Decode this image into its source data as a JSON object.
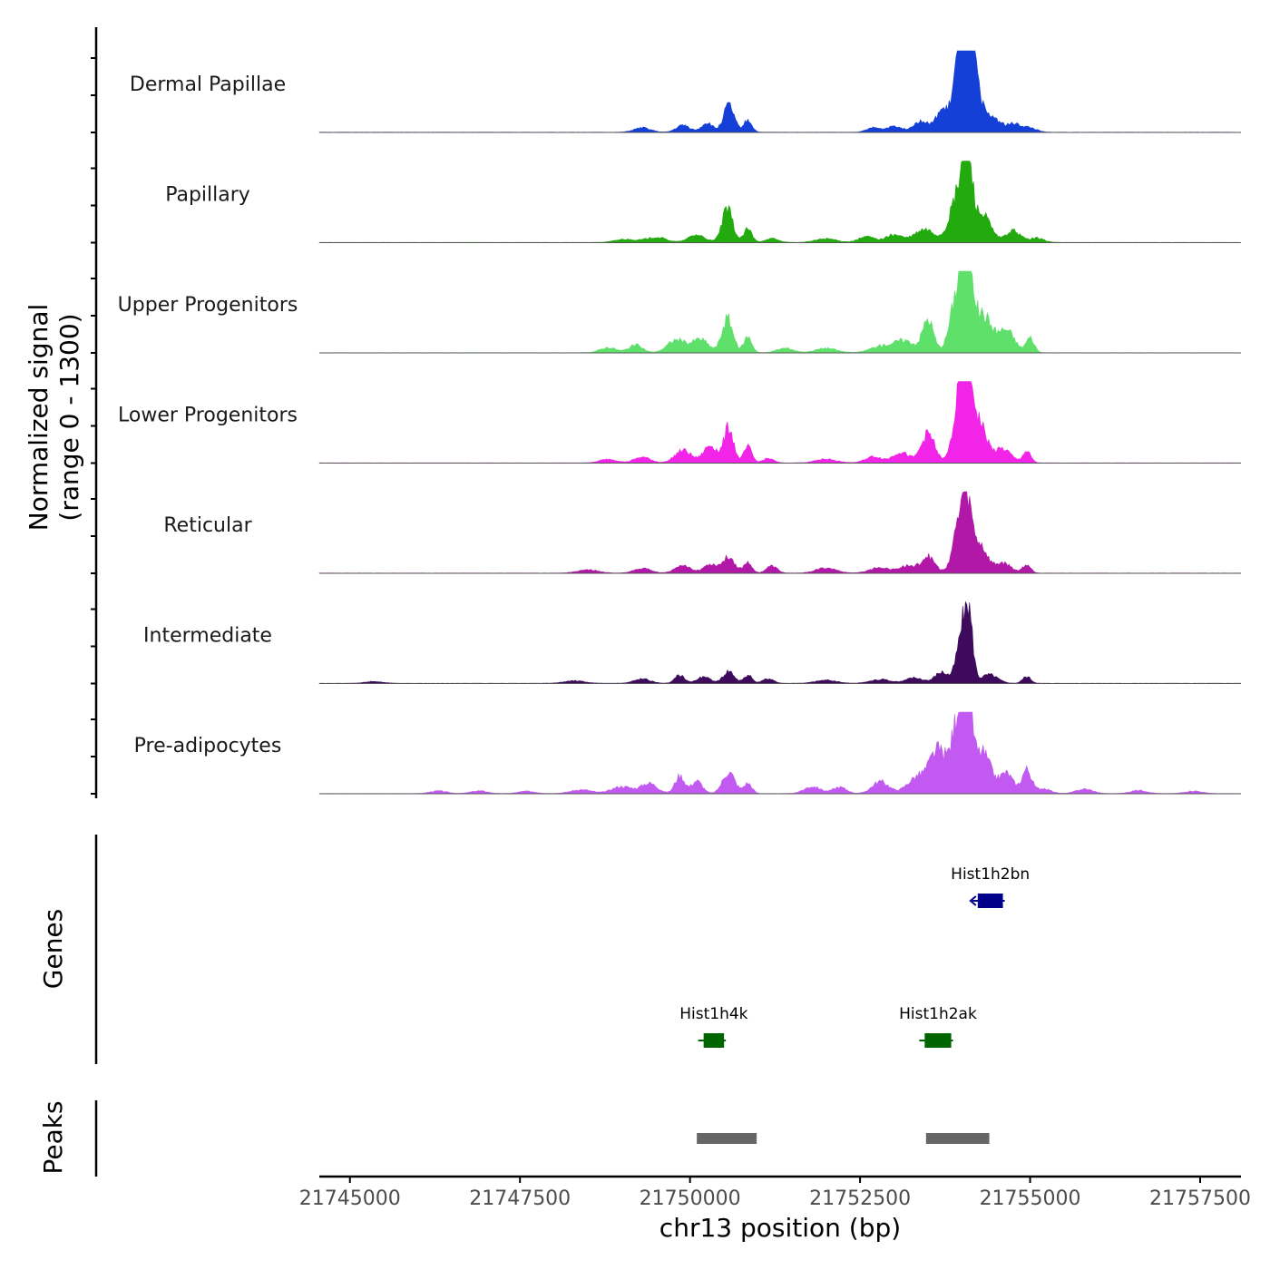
{
  "chart_data": {
    "type": "area",
    "title": "",
    "xlabel": "chr13 position (bp)",
    "ylabel": "Normalized signal\n(range 0 - 1300)",
    "ylabel_lines": [
      "Normalized signal",
      "(range 0 - 1300)"
    ],
    "ylim": [
      0,
      1300
    ],
    "xlim": [
      21744550,
      21758100
    ],
    "x_ticks": [
      21745000,
      21747500,
      21750000,
      21752500,
      21755000,
      21757500
    ],
    "x_tick_labels": [
      "21745000",
      "21747500",
      "21750000",
      "21752500",
      "21755000",
      "21757500"
    ],
    "panels": {
      "genes_title": "Genes",
      "peaks_title": "Peaks"
    },
    "tracks": [
      {
        "name": "Dermal Papillae",
        "color": "#1440d8",
        "peaks": [
          [
            21749300,
            70,
            120
          ],
          [
            21749900,
            110,
            100
          ],
          [
            21750250,
            150,
            80
          ],
          [
            21750570,
            420,
            80
          ],
          [
            21750850,
            190,
            60
          ],
          [
            21752700,
            70,
            100
          ],
          [
            21753000,
            100,
            100
          ],
          [
            21753400,
            180,
            120
          ],
          [
            21753700,
            330,
            80
          ],
          [
            21753950,
            1000,
            90
          ],
          [
            21754070,
            1250,
            80
          ],
          [
            21754200,
            700,
            90
          ],
          [
            21754450,
            230,
            100
          ],
          [
            21754750,
            130,
            120
          ],
          [
            21755000,
            60,
            100
          ]
        ]
      },
      {
        "name": "Papillary",
        "color": "#22aa0e",
        "peaks": [
          [
            21749050,
            50,
            150
          ],
          [
            21749500,
            80,
            150
          ],
          [
            21750100,
            120,
            120
          ],
          [
            21750550,
            520,
            80
          ],
          [
            21750850,
            210,
            60
          ],
          [
            21751200,
            60,
            100
          ],
          [
            21752000,
            60,
            150
          ],
          [
            21752600,
            90,
            120
          ],
          [
            21753000,
            120,
            120
          ],
          [
            21753450,
            200,
            150
          ],
          [
            21753950,
            760,
            120
          ],
          [
            21754080,
            1100,
            70
          ],
          [
            21754300,
            430,
            120
          ],
          [
            21754750,
            180,
            110
          ],
          [
            21755100,
            70,
            100
          ]
        ]
      },
      {
        "name": "Upper Progenitors",
        "color": "#5fe06a",
        "peaks": [
          [
            21748800,
            80,
            120
          ],
          [
            21749200,
            120,
            100
          ],
          [
            21749800,
            200,
            130
          ],
          [
            21750150,
            210,
            120
          ],
          [
            21750550,
            540,
            80
          ],
          [
            21750850,
            250,
            60
          ],
          [
            21751400,
            70,
            120
          ],
          [
            21752000,
            70,
            150
          ],
          [
            21752800,
            100,
            150
          ],
          [
            21753150,
            190,
            150
          ],
          [
            21753500,
            520,
            80
          ],
          [
            21753950,
            1000,
            110
          ],
          [
            21754080,
            1400,
            70
          ],
          [
            21754300,
            600,
            130
          ],
          [
            21754650,
            350,
            120
          ],
          [
            21755000,
            230,
            60
          ]
        ]
      },
      {
        "name": "Lower Progenitors",
        "color": "#f224e8",
        "peaks": [
          [
            21748800,
            60,
            120
          ],
          [
            21749300,
            90,
            120
          ],
          [
            21749900,
            200,
            120
          ],
          [
            21750300,
            280,
            100
          ],
          [
            21750570,
            560,
            70
          ],
          [
            21750850,
            250,
            60
          ],
          [
            21751150,
            70,
            80
          ],
          [
            21752000,
            60,
            150
          ],
          [
            21752700,
            100,
            120
          ],
          [
            21753100,
            170,
            120
          ],
          [
            21753500,
            460,
            100
          ],
          [
            21753950,
            800,
            90
          ],
          [
            21754070,
            1250,
            80
          ],
          [
            21754250,
            620,
            110
          ],
          [
            21754600,
            220,
            120
          ],
          [
            21754950,
            180,
            60
          ]
        ]
      },
      {
        "name": "Reticular",
        "color": "#b118a8",
        "peaks": [
          [
            21748500,
            50,
            150
          ],
          [
            21749300,
            80,
            120
          ],
          [
            21749900,
            110,
            120
          ],
          [
            21750300,
            140,
            100
          ],
          [
            21750570,
            250,
            90
          ],
          [
            21750850,
            170,
            60
          ],
          [
            21751200,
            110,
            80
          ],
          [
            21752000,
            80,
            150
          ],
          [
            21752800,
            90,
            150
          ],
          [
            21753200,
            110,
            120
          ],
          [
            21753500,
            260,
            100
          ],
          [
            21753950,
            700,
            90
          ],
          [
            21754070,
            920,
            70
          ],
          [
            21754250,
            460,
            110
          ],
          [
            21754600,
            160,
            120
          ],
          [
            21754950,
            130,
            60
          ]
        ]
      },
      {
        "name": "Intermediate",
        "color": "#3d0a5c",
        "peaks": [
          [
            21745350,
            30,
            120
          ],
          [
            21748300,
            40,
            150
          ],
          [
            21749300,
            70,
            120
          ],
          [
            21749850,
            130,
            70
          ],
          [
            21750200,
            100,
            100
          ],
          [
            21750570,
            200,
            80
          ],
          [
            21750850,
            130,
            60
          ],
          [
            21751150,
            70,
            80
          ],
          [
            21752000,
            50,
            150
          ],
          [
            21752800,
            60,
            150
          ],
          [
            21753300,
            90,
            120
          ],
          [
            21753700,
            180,
            100
          ],
          [
            21754000,
            750,
            80
          ],
          [
            21754100,
            920,
            60
          ],
          [
            21754400,
            140,
            120
          ],
          [
            21754950,
            110,
            60
          ]
        ]
      },
      {
        "name": "Pre-adipocytes",
        "color": "#c25af2",
        "peaks": [
          [
            21746300,
            40,
            120
          ],
          [
            21746900,
            40,
            120
          ],
          [
            21747600,
            35,
            120
          ],
          [
            21748400,
            60,
            150
          ],
          [
            21749000,
            110,
            150
          ],
          [
            21749400,
            160,
            120
          ],
          [
            21749850,
            280,
            70
          ],
          [
            21750100,
            200,
            80
          ],
          [
            21750570,
            340,
            90
          ],
          [
            21750850,
            160,
            60
          ],
          [
            21751800,
            110,
            120
          ],
          [
            21752200,
            100,
            100
          ],
          [
            21752800,
            190,
            120
          ],
          [
            21753350,
            260,
            150
          ],
          [
            21753650,
            650,
            120
          ],
          [
            21753950,
            1150,
            100
          ],
          [
            21754070,
            1500,
            70
          ],
          [
            21754300,
            650,
            120
          ],
          [
            21754650,
            320,
            100
          ],
          [
            21754950,
            380,
            70
          ],
          [
            21755200,
            80,
            100
          ],
          [
            21755800,
            70,
            120
          ],
          [
            21756600,
            50,
            120
          ],
          [
            21757400,
            40,
            120
          ]
        ]
      }
    ],
    "genes": [
      {
        "name": "Hist1h2bn",
        "start": 21754230,
        "end": 21754600,
        "color": "#00008b",
        "row": 0
      },
      {
        "name": "Hist1h4k",
        "start": 21750200,
        "end": 21750500,
        "color": "#006400",
        "row": 1
      },
      {
        "name": "Hist1h2ak",
        "start": 21753450,
        "end": 21753840,
        "color": "#006400",
        "row": 1
      }
    ],
    "peaks": [
      {
        "start": 21750100,
        "end": 21750980,
        "color": "#666666"
      },
      {
        "start": 21753470,
        "end": 21754400,
        "color": "#666666"
      }
    ]
  }
}
